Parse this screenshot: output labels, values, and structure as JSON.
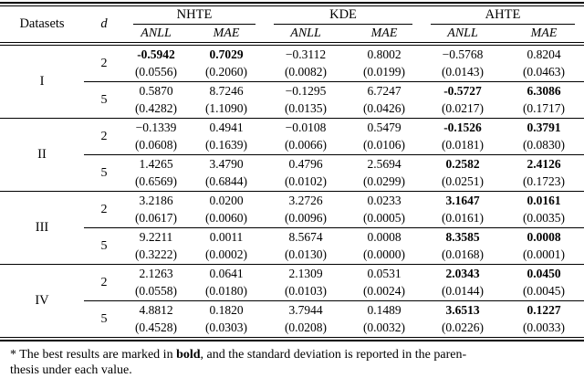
{
  "header": {
    "datasets_label": "Datasets",
    "d_label": "d",
    "groups": [
      {
        "name": "NHTE",
        "metrics": [
          "ANLL",
          "MAE"
        ]
      },
      {
        "name": "KDE",
        "metrics": [
          "ANLL",
          "MAE"
        ]
      },
      {
        "name": "AHTE",
        "metrics": [
          "ANLL",
          "MAE"
        ]
      }
    ]
  },
  "body": {
    "datasets": [
      {
        "label": "I",
        "rows": [
          {
            "d": "2",
            "cells": [
              {
                "value": "-0.5942",
                "std": "(0.0556)",
                "bold": true
              },
              {
                "value": "0.7029",
                "std": "(0.2060)",
                "bold": true
              },
              {
                "value": "−0.3112",
                "std": "(0.0082)",
                "bold": false
              },
              {
                "value": "0.8002",
                "std": "(0.0199)",
                "bold": false
              },
              {
                "value": "−0.5768",
                "std": "(0.0143)",
                "bold": false
              },
              {
                "value": "0.8204",
                "std": "(0.0463)",
                "bold": false
              }
            ]
          },
          {
            "d": "5",
            "cells": [
              {
                "value": "0.5870",
                "std": "(0.4282)",
                "bold": false
              },
              {
                "value": "8.7246",
                "std": "(1.1090)",
                "bold": false
              },
              {
                "value": "−0.1295",
                "std": "(0.0135)",
                "bold": false
              },
              {
                "value": "6.7247",
                "std": "(0.0426)",
                "bold": false
              },
              {
                "value": "-0.5727",
                "std": "(0.0217)",
                "bold": true
              },
              {
                "value": "6.3086",
                "std": "(0.1717)",
                "bold": true
              }
            ]
          }
        ]
      },
      {
        "label": "II",
        "rows": [
          {
            "d": "2",
            "cells": [
              {
                "value": "−0.1339",
                "std": "(0.0608)",
                "bold": false
              },
              {
                "value": "0.4941",
                "std": "(0.1639)",
                "bold": false
              },
              {
                "value": "−0.0108",
                "std": "(0.0066)",
                "bold": false
              },
              {
                "value": "0.5479",
                "std": "(0.0106)",
                "bold": false
              },
              {
                "value": "-0.1526",
                "std": "(0.0181)",
                "bold": true
              },
              {
                "value": "0.3791",
                "std": "(0.0830)",
                "bold": true
              }
            ]
          },
          {
            "d": "5",
            "cells": [
              {
                "value": "1.4265",
                "std": "(0.6569)",
                "bold": false
              },
              {
                "value": "3.4790",
                "std": "(0.6844)",
                "bold": false
              },
              {
                "value": "0.4796",
                "std": "(0.0102)",
                "bold": false
              },
              {
                "value": "2.5694",
                "std": "(0.0299)",
                "bold": false
              },
              {
                "value": "0.2582",
                "std": "(0.0251)",
                "bold": true
              },
              {
                "value": "2.4126",
                "std": "(0.1723)",
                "bold": true
              }
            ]
          }
        ]
      },
      {
        "label": "III",
        "rows": [
          {
            "d": "2",
            "cells": [
              {
                "value": "3.2186",
                "std": "(0.0617)",
                "bold": false
              },
              {
                "value": "0.0200",
                "std": "(0.0060)",
                "bold": false
              },
              {
                "value": "3.2726",
                "std": "(0.0096)",
                "bold": false
              },
              {
                "value": "0.0233",
                "std": "(0.0005)",
                "bold": false
              },
              {
                "value": "3.1647",
                "std": "(0.0161)",
                "bold": true
              },
              {
                "value": "0.0161",
                "std": "(0.0035)",
                "bold": true
              }
            ]
          },
          {
            "d": "5",
            "cells": [
              {
                "value": "9.2211",
                "std": "(0.3222)",
                "bold": false
              },
              {
                "value": "0.0011",
                "std": "(0.0002)",
                "bold": false
              },
              {
                "value": "8.5674",
                "std": "(0.0130)",
                "bold": false
              },
              {
                "value": "0.0008",
                "std": "(0.0000)",
                "bold": false
              },
              {
                "value": "8.3585",
                "std": "(0.0168)",
                "bold": true
              },
              {
                "value": "0.0008",
                "std": "(0.0001)",
                "bold": true
              }
            ]
          }
        ]
      },
      {
        "label": "IV",
        "rows": [
          {
            "d": "2",
            "cells": [
              {
                "value": "2.1263",
                "std": "(0.0558)",
                "bold": false
              },
              {
                "value": "0.0641",
                "std": "(0.0180)",
                "bold": false
              },
              {
                "value": "2.1309",
                "std": "(0.0103)",
                "bold": false
              },
              {
                "value": "0.0531",
                "std": "(0.0024)",
                "bold": false
              },
              {
                "value": "2.0343",
                "std": "(0.0144)",
                "bold": true
              },
              {
                "value": "0.0450",
                "std": "(0.0045)",
                "bold": true
              }
            ]
          },
          {
            "d": "5",
            "cells": [
              {
                "value": "4.8812",
                "std": "(0.4528)",
                "bold": false
              },
              {
                "value": "0.1820",
                "std": "(0.0303)",
                "bold": false
              },
              {
                "value": "3.7944",
                "std": "(0.0208)",
                "bold": false
              },
              {
                "value": "0.1489",
                "std": "(0.0032)",
                "bold": false
              },
              {
                "value": "3.6513",
                "std": "(0.0226)",
                "bold": true
              },
              {
                "value": "0.1227",
                "std": "(0.0033)",
                "bold": true
              }
            ]
          }
        ]
      }
    ]
  },
  "footnote": {
    "line1_pre": "* The best results are marked in ",
    "bold_word": "bold",
    "line1_post": ", and the standard deviation is reported in the paren-",
    "line2": "thesis under each value."
  },
  "colors": {
    "text": "#000000",
    "background": "#ffffff",
    "rule": "#000000"
  }
}
